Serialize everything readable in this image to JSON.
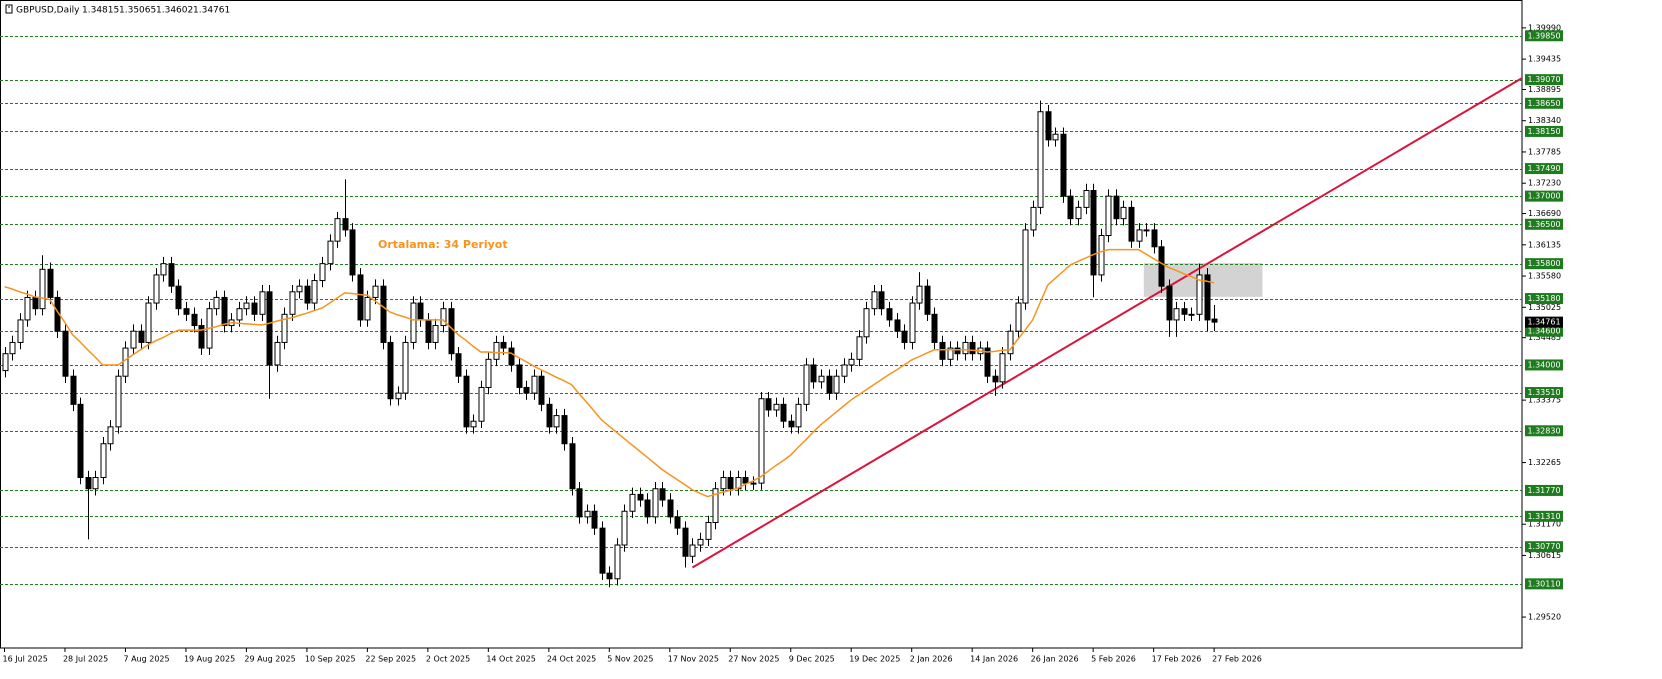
{
  "chart_data": {
    "type": "candlestick",
    "title": "GBPUSD,Daily",
    "categories": [
      "16 Jul 2025",
      null,
      null,
      null,
      null,
      null,
      null,
      null,
      "28 Jul 2025",
      null,
      null,
      null,
      null,
      null,
      null,
      null,
      "7 Aug 2025",
      null,
      null,
      null,
      null,
      null,
      null,
      null,
      "19 Aug 2025",
      null,
      null,
      null,
      null,
      null,
      null,
      null,
      "29 Aug 2025",
      null,
      null,
      null,
      null,
      null,
      null,
      null,
      "10 Sep 2025",
      null,
      null,
      null,
      null,
      null,
      null,
      null,
      "22 Sep 2025",
      null,
      null,
      null,
      null,
      null,
      null,
      null,
      "2 Oct 2025",
      null,
      null,
      null,
      null,
      null,
      null,
      null,
      "14 Oct 2025",
      null,
      null,
      null,
      null,
      null,
      null,
      null,
      "24 Oct 2025",
      null,
      null,
      null,
      null,
      null,
      null,
      null,
      "5 Nov 2025",
      null,
      null,
      null,
      null,
      null,
      null,
      null,
      "17 Nov 2025",
      null,
      null,
      null,
      null,
      null,
      null,
      null,
      "27 Nov 2025",
      null,
      null,
      null,
      null,
      null,
      null,
      null,
      "9 Dec 2025",
      null,
      null,
      null,
      null,
      null,
      null,
      null,
      "19 Dec 2025",
      null,
      null,
      null,
      null,
      null,
      null,
      null,
      "2 Jan 2026",
      null,
      null,
      null,
      null,
      null,
      null,
      null,
      "14 Jan 2026",
      null,
      null,
      null,
      null,
      null,
      null,
      null,
      "26 Jan 2026",
      null,
      null,
      null,
      null,
      null,
      null,
      null,
      "5 Feb 2026",
      null,
      null,
      null,
      null,
      null,
      null,
      null,
      "17 Feb 2026",
      null,
      null,
      null,
      null,
      null,
      null,
      null,
      "27 Feb 2026"
    ],
    "open": [
      1.339,
      1.342,
      1.344,
      1.348,
      1.352,
      1.35,
      1.357,
      1.352,
      1.346,
      1.338,
      1.333,
      1.32,
      1.318,
      1.32,
      1.326,
      1.329,
      1.338,
      1.343,
      1.346,
      1.344,
      1.351,
      1.356,
      1.358,
      1.354,
      1.35,
      1.349,
      1.347,
      1.343,
      1.35,
      1.352,
      1.347,
      1.348,
      1.35,
      1.351,
      1.349,
      1.353,
      1.34,
      1.344,
      1.349,
      1.353,
      1.354,
      1.351,
      1.355,
      1.358,
      1.362,
      1.366,
      1.364,
      1.356,
      1.348,
      1.352,
      1.354,
      1.344,
      1.334,
      1.335,
      1.344,
      1.351,
      1.348,
      1.344,
      1.347,
      1.35,
      1.342,
      1.338,
      1.329,
      1.33,
      1.336,
      1.341,
      1.344,
      1.343,
      1.34,
      1.336,
      1.335,
      1.338,
      1.333,
      1.329,
      1.331,
      1.326,
      1.318,
      1.313,
      1.314,
      1.311,
      1.303,
      1.302,
      1.308,
      1.314,
      1.317,
      1.316,
      1.313,
      1.318,
      1.316,
      1.313,
      1.311,
      1.306,
      1.308,
      1.309,
      1.312,
      1.318,
      1.32,
      1.318,
      1.32,
      1.319,
      1.319,
      1.334,
      1.332,
      1.333,
      1.33,
      1.329,
      1.333,
      1.34,
      1.337,
      1.338,
      1.335,
      1.338,
      1.34,
      1.341,
      1.345,
      1.35,
      1.353,
      1.35,
      1.348,
      1.346,
      1.344,
      1.351,
      1.354,
      1.349,
      1.344,
      1.341,
      1.343,
      1.342,
      1.344,
      1.342,
      1.343,
      1.338,
      1.337,
      1.342,
      1.346,
      1.351,
      1.364,
      1.368,
      1.385,
      1.38,
      1.381,
      1.37,
      1.366,
      1.368,
      1.371,
      1.356,
      1.363,
      1.37,
      1.366,
      1.368,
      1.362,
      1.364,
      1.364,
      1.361,
      1.354,
      1.348,
      1.35,
      1.349,
      1.349,
      1.356,
      1.34815
    ],
    "high": [
      1.3432,
      1.3452,
      1.3492,
      1.3532,
      1.3532,
      1.3595,
      1.3582,
      1.3532,
      1.3472,
      1.3392,
      1.3342,
      1.3212,
      1.3212,
      1.3272,
      1.3302,
      1.3392,
      1.3442,
      1.3472,
      1.3472,
      1.3522,
      1.3572,
      1.3592,
      1.3592,
      1.3552,
      1.3512,
      1.3502,
      1.3482,
      1.3512,
      1.3532,
      1.3532,
      1.3492,
      1.3512,
      1.3522,
      1.3522,
      1.3542,
      1.3542,
      1.3452,
      1.3502,
      1.3542,
      1.3552,
      1.3552,
      1.3562,
      1.3592,
      1.3632,
      1.3672,
      1.373,
      1.3652,
      1.3572,
      1.3532,
      1.3552,
      1.3552,
      1.3452,
      1.3362,
      1.3452,
      1.3522,
      1.3522,
      1.3492,
      1.3482,
      1.3512,
      1.3512,
      1.3432,
      1.3392,
      1.3312,
      1.3372,
      1.3422,
      1.3452,
      1.3452,
      1.3442,
      1.3412,
      1.3372,
      1.3392,
      1.3392,
      1.3342,
      1.3322,
      1.3322,
      1.3272,
      1.3192,
      1.3152,
      1.3152,
      1.3122,
      1.3042,
      1.3092,
      1.3152,
      1.3182,
      1.3182,
      1.3172,
      1.3192,
      1.3192,
      1.3172,
      1.3142,
      1.3122,
      1.3092,
      1.3102,
      1.3132,
      1.3192,
      1.3212,
      1.3212,
      1.3212,
      1.3212,
      1.3202,
      1.3352,
      1.3352,
      1.3342,
      1.3342,
      1.3312,
      1.3342,
      1.3412,
      1.3412,
      1.3392,
      1.3392,
      1.3392,
      1.3412,
      1.3422,
      1.3462,
      1.3512,
      1.3542,
      1.3542,
      1.3512,
      1.3492,
      1.3472,
      1.3522,
      1.3565,
      1.3552,
      1.3502,
      1.3452,
      1.3442,
      1.3442,
      1.3452,
      1.3452,
      1.3442,
      1.3442,
      1.3392,
      1.3432,
      1.3472,
      1.3522,
      1.3652,
      1.3692,
      1.387,
      1.3862,
      1.3822,
      1.3822,
      1.3712,
      1.3692,
      1.3722,
      1.3722,
      1.3642,
      1.3712,
      1.3712,
      1.3692,
      1.3692,
      1.3652,
      1.3652,
      1.3652,
      1.3622,
      1.3552,
      1.3512,
      1.3512,
      1.3502,
      1.358,
      1.3572,
      1.35065
    ],
    "low": [
      1.3378,
      1.3408,
      1.3428,
      1.3468,
      1.3488,
      1.3488,
      1.3508,
      1.3448,
      1.3368,
      1.3318,
      1.3188,
      1.309,
      1.3168,
      1.3188,
      1.3248,
      1.3278,
      1.3368,
      1.3418,
      1.3428,
      1.3428,
      1.3498,
      1.3548,
      1.3528,
      1.3488,
      1.3478,
      1.3458,
      1.3418,
      1.3418,
      1.3488,
      1.3458,
      1.3458,
      1.3468,
      1.3488,
      1.3478,
      1.3478,
      1.334,
      1.3388,
      1.3428,
      1.3478,
      1.3518,
      1.3498,
      1.3498,
      1.3538,
      1.3568,
      1.3608,
      1.3628,
      1.3548,
      1.3468,
      1.3468,
      1.3508,
      1.3428,
      1.3328,
      1.3328,
      1.3338,
      1.3428,
      1.3468,
      1.3428,
      1.3428,
      1.3458,
      1.3408,
      1.3368,
      1.3278,
      1.3278,
      1.3288,
      1.3348,
      1.3398,
      1.3418,
      1.3388,
      1.3348,
      1.3338,
      1.3338,
      1.3318,
      1.3278,
      1.3278,
      1.3248,
      1.3168,
      1.3118,
      1.3118,
      1.3098,
      1.3018,
      1.3005,
      1.3008,
      1.3068,
      1.3128,
      1.3148,
      1.3118,
      1.3118,
      1.3148,
      1.3118,
      1.3098,
      1.304,
      1.3048,
      1.3068,
      1.3078,
      1.3108,
      1.3168,
      1.3168,
      1.3168,
      1.3178,
      1.3178,
      1.3178,
      1.3308,
      1.3308,
      1.3288,
      1.3278,
      1.3278,
      1.3318,
      1.3358,
      1.3358,
      1.3338,
      1.3338,
      1.3368,
      1.3388,
      1.3398,
      1.3438,
      1.3488,
      1.3488,
      1.3468,
      1.3448,
      1.3428,
      1.3428,
      1.3498,
      1.3478,
      1.3428,
      1.3398,
      1.3398,
      1.3408,
      1.3408,
      1.3408,
      1.3408,
      1.3368,
      1.3345,
      1.3358,
      1.3408,
      1.3448,
      1.3498,
      1.3628,
      1.3668,
      1.3788,
      1.3788,
      1.3688,
      1.3648,
      1.3648,
      1.3668,
      1.352,
      1.3548,
      1.3618,
      1.3648,
      1.3648,
      1.3608,
      1.3608,
      1.3628,
      1.3598,
      1.3528,
      1.345,
      1.345,
      1.3478,
      1.3478,
      1.3478,
      1.346,
      1.34602
    ],
    "close": [
      1.342,
      1.344,
      1.348,
      1.352,
      1.35,
      1.357,
      1.352,
      1.346,
      1.338,
      1.333,
      1.32,
      1.318,
      1.32,
      1.326,
      1.329,
      1.338,
      1.343,
      1.346,
      1.344,
      1.351,
      1.356,
      1.358,
      1.354,
      1.35,
      1.349,
      1.347,
      1.343,
      1.35,
      1.352,
      1.347,
      1.348,
      1.35,
      1.351,
      1.349,
      1.353,
      1.34,
      1.344,
      1.349,
      1.353,
      1.354,
      1.351,
      1.355,
      1.358,
      1.362,
      1.366,
      1.364,
      1.356,
      1.348,
      1.352,
      1.354,
      1.344,
      1.334,
      1.335,
      1.344,
      1.351,
      1.348,
      1.344,
      1.347,
      1.35,
      1.342,
      1.338,
      1.329,
      1.33,
      1.336,
      1.341,
      1.344,
      1.343,
      1.34,
      1.336,
      1.335,
      1.338,
      1.333,
      1.329,
      1.331,
      1.326,
      1.318,
      1.313,
      1.314,
      1.311,
      1.303,
      1.302,
      1.308,
      1.314,
      1.317,
      1.316,
      1.313,
      1.318,
      1.316,
      1.313,
      1.311,
      1.306,
      1.308,
      1.309,
      1.312,
      1.318,
      1.32,
      1.318,
      1.32,
      1.319,
      1.319,
      1.334,
      1.332,
      1.333,
      1.33,
      1.329,
      1.333,
      1.34,
      1.337,
      1.338,
      1.335,
      1.338,
      1.34,
      1.341,
      1.345,
      1.35,
      1.353,
      1.35,
      1.348,
      1.346,
      1.344,
      1.351,
      1.354,
      1.349,
      1.344,
      1.341,
      1.343,
      1.342,
      1.344,
      1.342,
      1.343,
      1.338,
      1.337,
      1.342,
      1.346,
      1.351,
      1.364,
      1.368,
      1.385,
      1.38,
      1.381,
      1.37,
      1.366,
      1.368,
      1.371,
      1.356,
      1.363,
      1.37,
      1.366,
      1.368,
      1.362,
      1.364,
      1.364,
      1.361,
      1.354,
      1.348,
      1.35,
      1.349,
      1.349,
      1.356,
      1.348,
      1.34761
    ],
    "up_color": "#ffffff",
    "down_color": "#000000",
    "series": [
      {
        "name": "Ortalama: 34 Periyot",
        "color": "#f7931e",
        "values": [
          1.3539,
          1.3535,
          1.353,
          1.3526,
          1.3521,
          1.3519,
          1.3516,
          1.3495,
          1.3475,
          1.3454,
          1.3441,
          1.3427,
          1.3414,
          1.34,
          1.34,
          1.34,
          1.3409,
          1.3418,
          1.3427,
          1.3436,
          1.3443,
          1.3449,
          1.3456,
          1.3462,
          1.3462,
          1.3462,
          1.3462,
          1.3465,
          1.3468,
          1.3472,
          1.3475,
          1.3474,
          1.3473,
          1.3472,
          1.3471,
          1.3474,
          1.3478,
          1.3481,
          1.3484,
          1.3488,
          1.3492,
          1.3497,
          1.3501,
          1.351,
          1.3519,
          1.3528,
          1.3527,
          1.3525,
          1.3524,
          1.3514,
          1.3504,
          1.3494,
          1.3489,
          1.3485,
          1.348,
          1.348,
          1.348,
          1.348,
          1.348,
          1.3467,
          1.3454,
          1.3444,
          1.3433,
          1.3423,
          1.3423,
          1.3422,
          1.3422,
          1.3421,
          1.3413,
          1.3406,
          1.3398,
          1.3391,
          1.3385,
          1.3378,
          1.3372,
          1.3365,
          1.3349,
          1.3334,
          1.3318,
          1.3302,
          1.3291,
          1.328,
          1.3269,
          1.3258,
          1.3247,
          1.3236,
          1.3225,
          1.3214,
          1.3205,
          1.3196,
          1.3187,
          1.3178,
          1.3172,
          1.3166,
          1.317,
          1.3174,
          1.3177,
          1.3181,
          1.3188,
          1.3194,
          1.3201,
          1.3211,
          1.3221,
          1.323,
          1.324,
          1.3254,
          1.3267,
          1.3281,
          1.3294,
          1.3305,
          1.3316,
          1.3327,
          1.3338,
          1.3347,
          1.3356,
          1.3365,
          1.3374,
          1.3383,
          1.3391,
          1.34,
          1.3409,
          1.3415,
          1.3421,
          1.3427,
          1.3427,
          1.3427,
          1.3427,
          1.3427,
          1.3426,
          1.3425,
          1.3423,
          1.3424,
          1.3426,
          1.3427,
          1.3445,
          1.3462,
          1.348,
          1.3511,
          1.3542,
          1.3554,
          1.3566,
          1.3578,
          1.3584,
          1.359,
          1.3596,
          1.3601,
          1.3605,
          1.3605,
          1.3605,
          1.3605,
          1.3605,
          1.3597,
          1.3589,
          1.3581,
          1.3573,
          1.3568,
          1.3562,
          1.3557,
          1.3551,
          1.3549,
          1.3546
        ]
      }
    ],
    "ylim": [
      1.2897,
      1.4045
    ],
    "yticks": [
      {
        "value": 1.3999,
        "label": "1.39990"
      },
      1.39435,
      1.38895,
      {
        "value": 1.3834,
        "label": "1.38340"
      },
      1.37785,
      {
        "value": 1.3723,
        "label": "1.37230"
      },
      {
        "value": 1.3669,
        "label": "1.36690"
      },
      1.36135,
      {
        "value": 1.3558,
        "label": "1.35580"
      },
      1.35025,
      1.34485,
      1.33375,
      1.32265,
      {
        "value": 1.3117,
        "label": "1.31170"
      },
      1.30615,
      {
        "value": 1.2952,
        "label": "1.29520"
      }
    ],
    "levels": [
      {
        "value": 1.3985,
        "label": "1.39850"
      },
      {
        "value": 1.3907,
        "label": "1.39070"
      },
      {
        "value": 1.3865,
        "label": "1.38650"
      },
      {
        "value": 1.3815,
        "label": "1.38150"
      },
      {
        "value": 1.3749,
        "label": "1.37490"
      },
      {
        "value": 1.37,
        "label": "1.37000"
      },
      {
        "value": 1.365,
        "label": "1.36500"
      },
      {
        "value": 1.358,
        "label": "1.35800"
      },
      {
        "value": 1.3518,
        "label": "1.35180"
      },
      {
        "value": 1.346,
        "label": "1.34600"
      },
      {
        "value": 1.34,
        "label": "1.34000"
      },
      {
        "value": 1.3351,
        "label": "1.33510"
      },
      {
        "value": 1.3283,
        "label": "1.32830"
      },
      {
        "value": 1.3177,
        "label": "1.31770"
      },
      {
        "value": 1.3131,
        "label": "1.31310"
      },
      {
        "value": 1.3077,
        "label": "1.30770"
      },
      {
        "value": 1.3011,
        "label": "1.30110"
      }
    ],
    "level_color": "#1e7b1e",
    "trendline": {
      "color": "#dc143c",
      "x": [
        91,
        201
      ],
      "values": [
        1.304,
        1.3912
      ]
    },
    "zone": {
      "color": "#d3d3d3",
      "x": [
        150.7,
        166.4
      ],
      "values": [
        1.3521,
        1.3581
      ]
    }
  }
}
